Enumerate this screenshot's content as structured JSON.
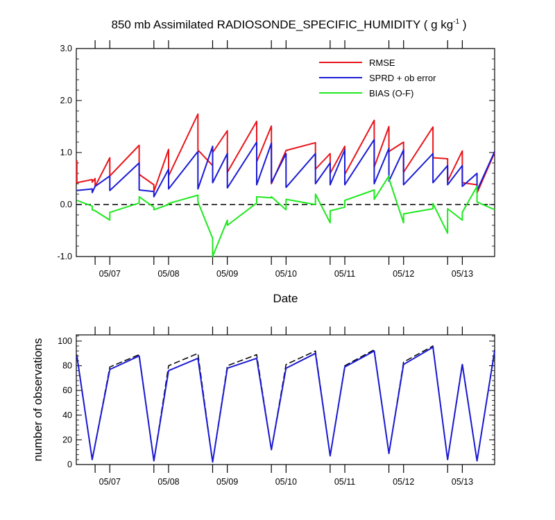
{
  "chart_data": [
    {
      "type": "line",
      "title": "850 mb Assimilated RADIOSONDE_SPECIFIC_HUMIDITY ( g kg",
      "title_units_exponent": "-1",
      "title_close": " )",
      "xlabel": "Date",
      "ylabel": "",
      "ylim": [
        -1.0,
        3.0
      ],
      "xlim": [
        6.43,
        13.55
      ],
      "y_ticks": [
        -1.0,
        0.0,
        1.0,
        2.0,
        3.0
      ],
      "y_tick_labels": [
        "-1.0",
        "0.0",
        "1.0",
        "2.0",
        "3.0"
      ],
      "x_ticks": [
        7,
        8,
        9,
        10,
        11,
        12,
        13
      ],
      "x_tick_labels": [
        "05/07",
        "05/08",
        "05/09",
        "05/10",
        "05/11",
        "05/12",
        "05/13"
      ],
      "reference_line": {
        "y": 0.0,
        "style": "dashed",
        "color": "#000000"
      },
      "legend_position": "top-right",
      "series": [
        {
          "name": "RMSE",
          "color": "#e8141a",
          "x": [
            6.44,
            6.44,
            6.7,
            6.7,
            6.75,
            6.75,
            7.0,
            7.0,
            7.5,
            7.5,
            7.75,
            7.75,
            8.0,
            8.0,
            8.5,
            8.5,
            8.75,
            8.75,
            9.0,
            9.0,
            9.5,
            9.5,
            9.75,
            9.75,
            10.0,
            10.0,
            10.5,
            10.5,
            10.75,
            10.75,
            11.0,
            11.0,
            11.5,
            11.5,
            11.75,
            11.75,
            12.0,
            12.0,
            12.5,
            12.5,
            12.75,
            12.75,
            13.0,
            13.0,
            13.25,
            13.25,
            13.55
          ],
          "y": [
            0.85,
            0.42,
            0.48,
            0.43,
            0.5,
            0.35,
            0.9,
            0.55,
            1.14,
            0.58,
            0.38,
            0.25,
            1.06,
            0.55,
            1.74,
            1.05,
            0.75,
            1.0,
            1.42,
            0.62,
            1.6,
            0.82,
            1.51,
            0.4,
            1.04,
            1.04,
            1.19,
            0.68,
            0.98,
            0.6,
            1.12,
            0.58,
            1.62,
            0.72,
            1.5,
            1.02,
            1.2,
            0.62,
            1.49,
            0.9,
            0.88,
            0.45,
            1.03,
            0.42,
            0.38,
            0.22,
            1.0
          ]
        },
        {
          "name": "SPRD + ob error",
          "color": "#1a1ad4",
          "x": [
            6.44,
            6.7,
            6.7,
            6.75,
            7.0,
            7.0,
            7.5,
            7.5,
            7.75,
            7.75,
            8.0,
            8.0,
            8.5,
            8.5,
            8.75,
            8.75,
            9.0,
            9.0,
            9.5,
            9.5,
            9.75,
            9.75,
            10.0,
            10.0,
            10.5,
            10.5,
            10.75,
            10.75,
            11.0,
            11.0,
            11.5,
            11.5,
            11.75,
            11.75,
            12.0,
            12.0,
            12.5,
            12.5,
            12.75,
            12.75,
            13.0,
            13.0,
            13.25,
            13.25,
            13.55
          ],
          "y": [
            0.27,
            0.3,
            0.23,
            0.35,
            0.55,
            0.27,
            0.8,
            0.28,
            0.25,
            0.15,
            0.68,
            0.3,
            1.02,
            0.3,
            1.12,
            0.42,
            0.98,
            0.32,
            1.2,
            0.38,
            1.18,
            0.42,
            0.98,
            0.33,
            0.98,
            0.4,
            0.8,
            0.38,
            1.05,
            0.38,
            1.25,
            0.4,
            1.08,
            0.45,
            1.05,
            0.38,
            0.98,
            0.42,
            0.75,
            0.38,
            0.75,
            0.35,
            0.6,
            0.27,
            1.02
          ]
        },
        {
          "name": "BIAS (O-F)",
          "color": "#1ee81e",
          "x": [
            6.44,
            6.7,
            6.7,
            6.75,
            7.0,
            7.0,
            7.5,
            7.5,
            7.75,
            7.75,
            8.0,
            8.0,
            8.5,
            8.5,
            8.75,
            8.75,
            9.0,
            9.0,
            9.5,
            9.5,
            9.75,
            9.75,
            10.0,
            10.0,
            10.5,
            10.5,
            10.75,
            10.75,
            11.0,
            11.0,
            11.5,
            11.5,
            11.75,
            11.75,
            12.0,
            12.0,
            12.5,
            12.5,
            12.75,
            12.75,
            13.0,
            13.0,
            13.25,
            13.25,
            13.55
          ],
          "y": [
            0.08,
            -0.03,
            -0.1,
            -0.12,
            -0.3,
            -0.15,
            0.03,
            0.15,
            -0.05,
            -0.1,
            0.0,
            0.02,
            0.18,
            0.05,
            -0.65,
            -1.0,
            -0.3,
            -0.4,
            0.03,
            0.15,
            0.13,
            0.15,
            -0.1,
            0.1,
            0.0,
            0.2,
            -0.35,
            -0.12,
            -0.05,
            0.08,
            0.28,
            0.1,
            0.55,
            0.5,
            -0.35,
            -0.18,
            -0.08,
            0.02,
            -0.55,
            -0.08,
            -0.3,
            -0.15,
            0.35,
            0.05,
            -0.1
          ]
        }
      ]
    },
    {
      "type": "line",
      "title": "",
      "xlabel": "",
      "ylabel": "number of observations",
      "ylim": [
        0,
        105
      ],
      "xlim": [
        6.43,
        13.55
      ],
      "y_ticks": [
        0,
        20,
        40,
        60,
        80,
        100
      ],
      "y_tick_labels": [
        "0",
        "20",
        "40",
        "60",
        "80",
        "100"
      ],
      "x_ticks": [
        7,
        8,
        9,
        10,
        11,
        12,
        13
      ],
      "x_tick_labels": [
        "05/07",
        "05/08",
        "05/09",
        "05/10",
        "05/11",
        "05/12",
        "05/13"
      ],
      "series": [
        {
          "name": "",
          "style": "dashed",
          "color": "#000000",
          "x": [
            6.44,
            6.7,
            7.0,
            7.5,
            7.75,
            8.0,
            8.5,
            8.75,
            9.0,
            9.5,
            9.75,
            10.0,
            10.5,
            10.75,
            11.0,
            11.5,
            11.75,
            12.0,
            12.5,
            12.75,
            13.0,
            13.25,
            13.55
          ],
          "y": [
            89,
            4,
            79,
            89,
            3,
            80,
            90,
            2,
            80,
            89,
            12,
            81,
            92,
            7,
            80,
            93,
            9,
            83,
            96,
            4,
            82,
            3,
            93
          ]
        },
        {
          "name": "",
          "style": "solid",
          "color": "#1a1ad4",
          "x": [
            6.44,
            6.7,
            7.0,
            7.5,
            7.75,
            8.0,
            8.5,
            8.75,
            9.0,
            9.5,
            9.75,
            10.0,
            10.5,
            10.75,
            11.0,
            11.5,
            11.75,
            12.0,
            12.5,
            12.75,
            13.0,
            13.25,
            13.55
          ],
          "y": [
            88,
            4,
            77,
            88,
            3,
            76,
            86,
            2,
            78,
            86,
            12,
            78,
            90,
            7,
            79,
            92,
            9,
            81,
            95,
            4,
            81,
            3,
            92
          ]
        }
      ]
    }
  ]
}
